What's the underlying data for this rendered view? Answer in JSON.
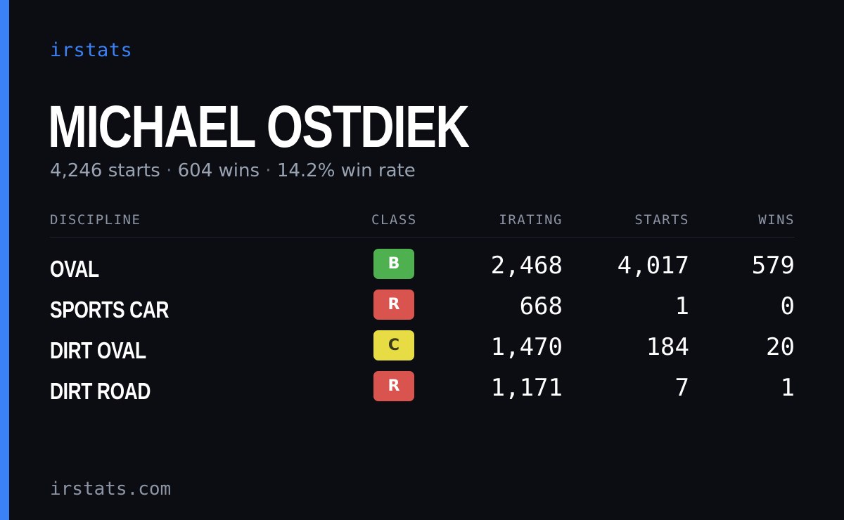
{
  "brand": "irstats",
  "driver": {
    "name": "MICHAEL OSTDIEK",
    "starts_text": "4,246 starts",
    "wins_text": "604 wins",
    "win_rate_text": "14.2% win rate",
    "separator": "·"
  },
  "table": {
    "headers": {
      "discipline": "DISCIPLINE",
      "class": "CLASS",
      "irating": "IRATING",
      "starts": "STARTS",
      "wins": "WINS"
    },
    "rows": [
      {
        "discipline": "OVAL",
        "class": "B",
        "class_bg": "#4fb04f",
        "class_fg": "#ffffff",
        "irating": "2,468",
        "starts": "4,017",
        "wins": "579"
      },
      {
        "discipline": "SPORTS CAR",
        "class": "R",
        "class_bg": "#d9534f",
        "class_fg": "#ffffff",
        "irating": "668",
        "starts": "1",
        "wins": "0"
      },
      {
        "discipline": "DIRT OVAL",
        "class": "C",
        "class_bg": "#e7dc43",
        "class_fg": "#3a3a1a",
        "irating": "1,470",
        "starts": "184",
        "wins": "20"
      },
      {
        "discipline": "DIRT ROAD",
        "class": "R",
        "class_bg": "#d9534f",
        "class_fg": "#ffffff",
        "irating": "1,171",
        "starts": "7",
        "wins": "1"
      }
    ]
  },
  "footer": "irstats.com",
  "colors": {
    "background": "#0b0d13",
    "accent": "#3b82f6",
    "muted": "#9aa3b2"
  }
}
